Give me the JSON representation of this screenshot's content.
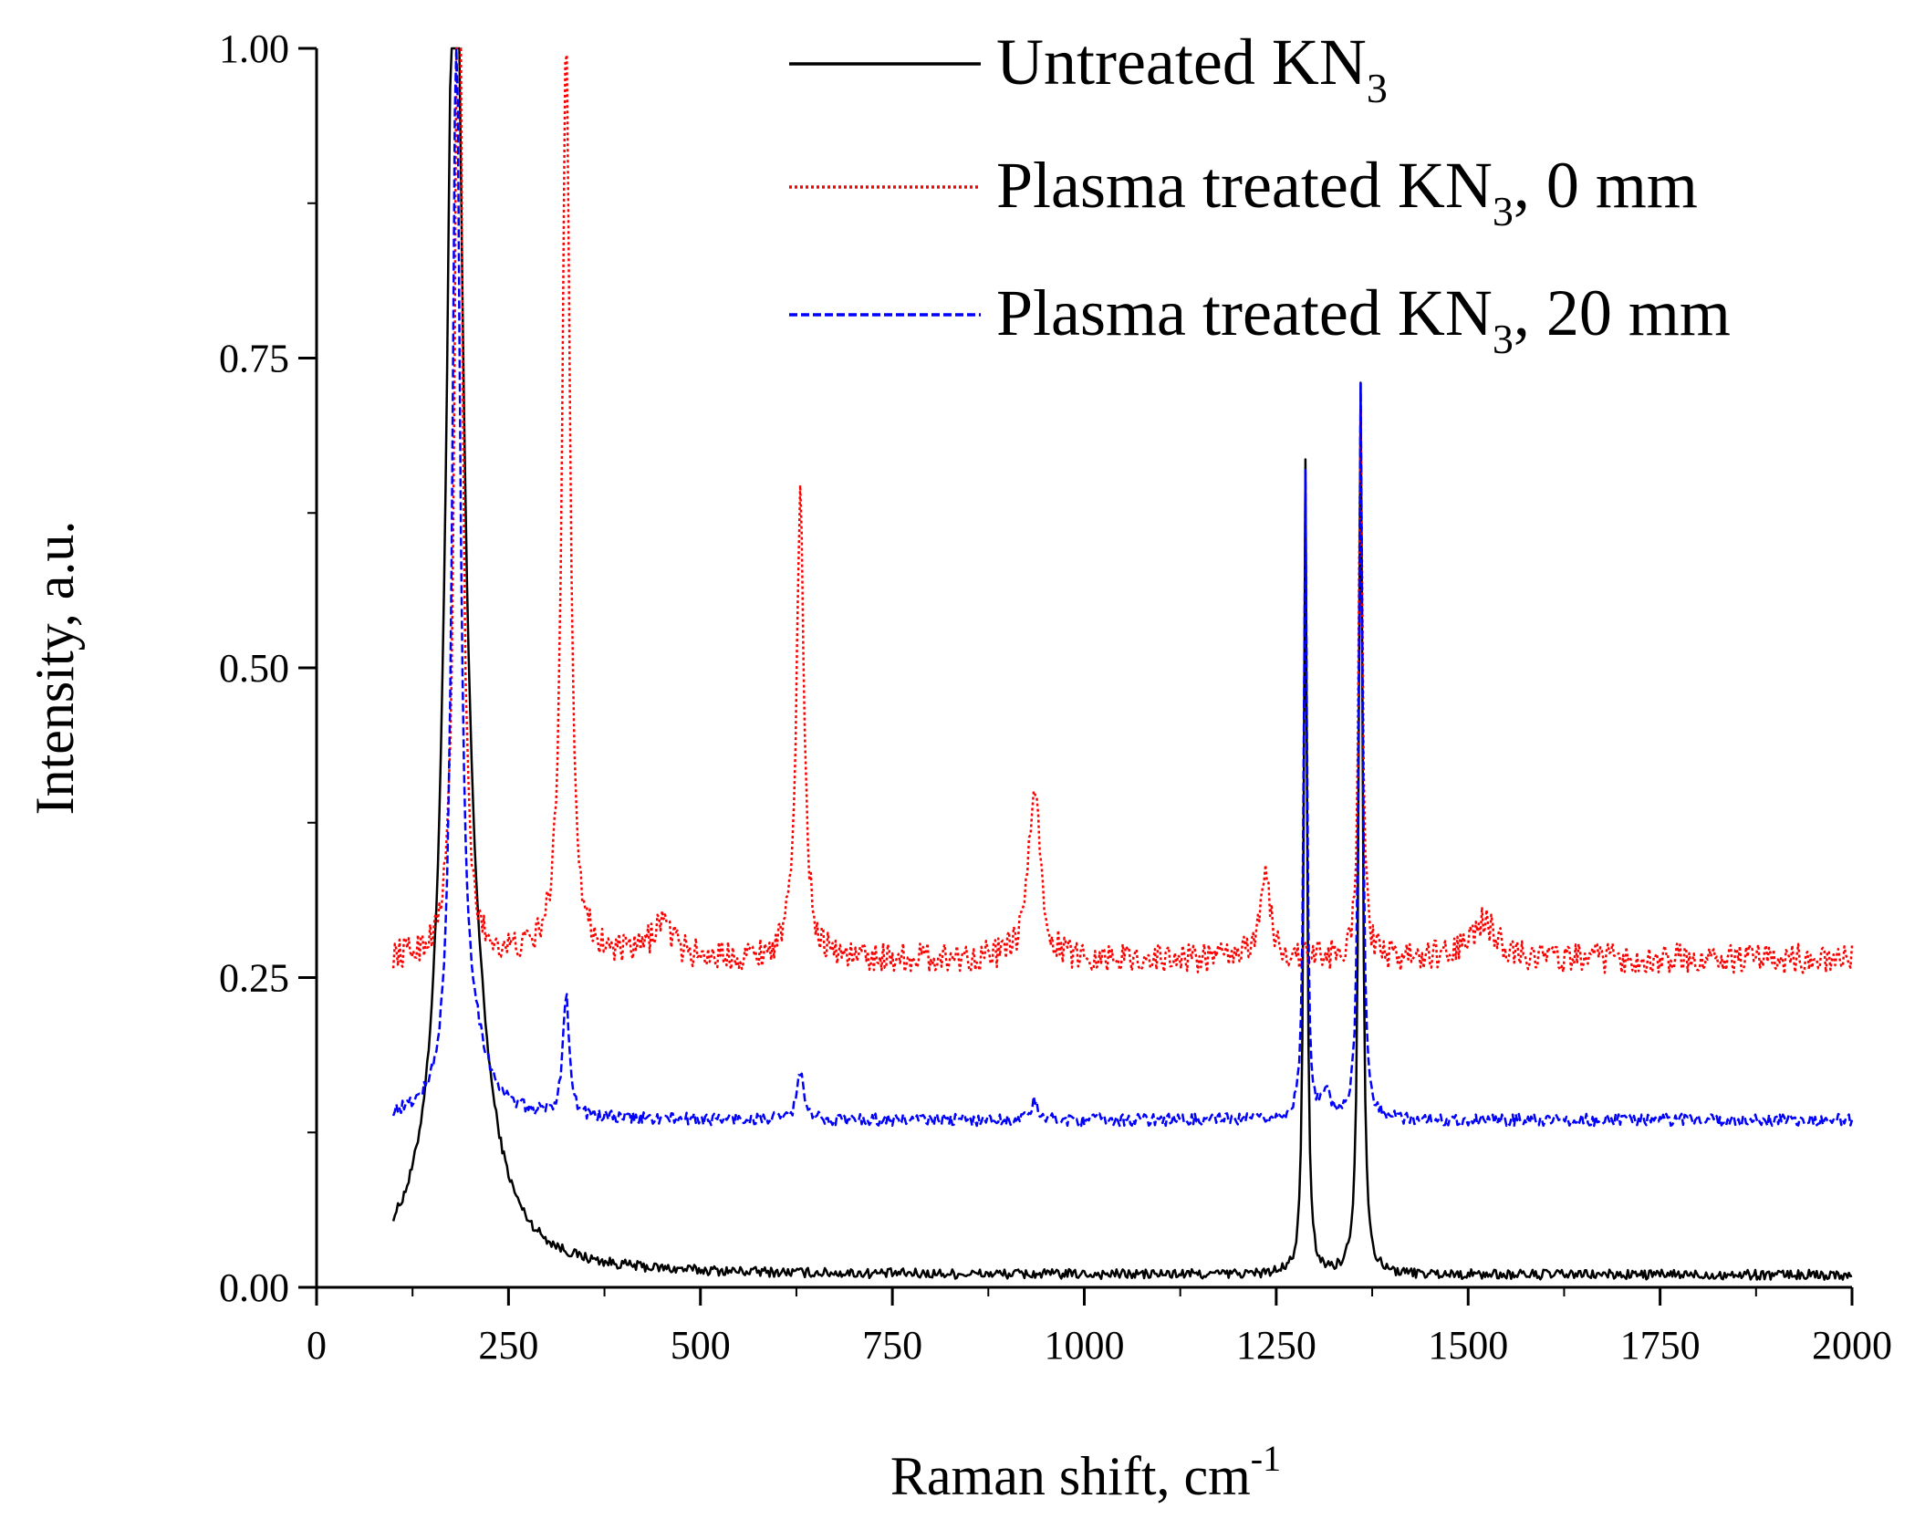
{
  "chart_data": {
    "type": "line",
    "xlabel": "Raman shift, cm",
    "xlabel_sup": "-1",
    "ylabel": "Intensity, a.u.",
    "xlim": [
      0,
      2000
    ],
    "ylim": [
      0,
      1.0
    ],
    "xticks": [
      0,
      250,
      500,
      750,
      1000,
      1250,
      1500,
      1750,
      2000
    ],
    "yticks": [
      "0.00",
      "0.25",
      "0.50",
      "0.75",
      "1.00"
    ],
    "grid": false,
    "legend_position": "top-right",
    "series": [
      {
        "name": "Untreated KN",
        "subscript": "3",
        "suffix": "",
        "color": "#000000",
        "style": "solid",
        "baseline": 0.01,
        "noise": 0.004,
        "start": 100,
        "peaks": [
          [
            180,
            1.0,
            12
          ],
          [
            192,
            0.2,
            35
          ],
          [
            1288,
            0.66,
            2.5
          ],
          [
            1360,
            0.72,
            3
          ]
        ]
      },
      {
        "name": "Plasma treated KN",
        "subscript": "3",
        "suffix": ", 0 mm",
        "color": "#ff0000",
        "style": "dotted",
        "baseline": 0.265,
        "noise": 0.012,
        "start": 100,
        "peaks": [
          [
            185,
            1.0,
            5
          ],
          [
            325,
            0.75,
            6
          ],
          [
            450,
            0.03,
            15
          ],
          [
            630,
            0.37,
            6
          ],
          [
            935,
            0.14,
            9
          ],
          [
            1235,
            0.07,
            8
          ],
          [
            1520,
            0.03,
            20
          ],
          [
            1360,
            0.45,
            3
          ]
        ]
      },
      {
        "name": "Plasma treated KN",
        "subscript": "3",
        "suffix": ", 20 mm",
        "color": "#0000ff",
        "style": "dashed",
        "baseline": 0.135,
        "noise": 0.005,
        "start": 100,
        "peaks": [
          [
            182,
            0.86,
            6
          ],
          [
            200,
            0.06,
            25
          ],
          [
            325,
            0.1,
            5
          ],
          [
            630,
            0.04,
            5
          ],
          [
            935,
            0.015,
            5
          ],
          [
            1288,
            0.52,
            2.5
          ],
          [
            1315,
            0.025,
            5
          ],
          [
            1360,
            0.59,
            3
          ]
        ]
      }
    ]
  }
}
